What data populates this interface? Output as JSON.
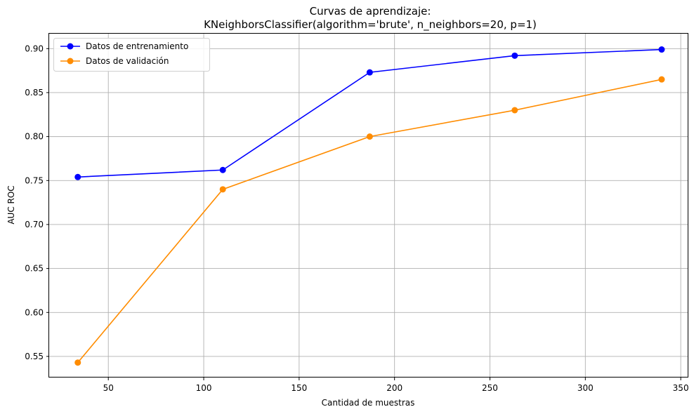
{
  "chart_data": {
    "type": "line",
    "title": "Curvas de aprendizaje:",
    "subtitle": "KNeighborsClassifier(algorithm='brute', n_neighbors=20, p=1)",
    "xlabel": "Cantidad de muestras",
    "ylabel": "AUC ROC",
    "x": [
      34,
      110,
      187,
      263,
      340
    ],
    "xlim": [
      19,
      354
    ],
    "ylim": [
      0.526,
      0.917
    ],
    "xticks": [
      50,
      100,
      150,
      200,
      250,
      300,
      350
    ],
    "yticks": [
      0.55,
      0.6,
      0.65,
      0.7,
      0.75,
      0.8,
      0.85,
      0.9
    ],
    "ytick_labels": [
      "0.55",
      "0.60",
      "0.65",
      "0.70",
      "0.75",
      "0.80",
      "0.85",
      "0.90"
    ],
    "grid": true,
    "legend_position": "top-left",
    "series": [
      {
        "name": "Datos de entrenamiento",
        "color": "#0000ff",
        "marker": "circle",
        "values": [
          0.754,
          0.762,
          0.873,
          0.892,
          0.899
        ]
      },
      {
        "name": "Datos de validación",
        "color": "#ff8c00",
        "marker": "circle",
        "values": [
          0.543,
          0.74,
          0.8,
          0.83,
          0.865
        ]
      }
    ]
  }
}
